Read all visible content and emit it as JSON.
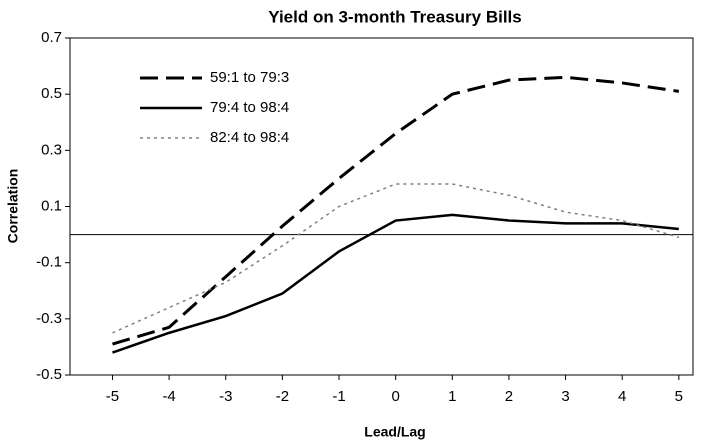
{
  "chart_data": {
    "type": "line",
    "title": "Yield on 3-month Treasury Bills",
    "x_label": "Lead/Lag",
    "y_label": "Correlation",
    "x": [
      -5,
      -4,
      -3,
      -2,
      -1,
      0,
      1,
      2,
      3,
      4,
      5
    ],
    "xlim": [
      -5.75,
      5.25
    ],
    "xticks": [
      -5,
      -4,
      -3,
      -2,
      -1,
      0,
      1,
      2,
      3,
      4,
      5
    ],
    "ylim": [
      -0.5,
      0.7
    ],
    "yticks": [
      -0.5,
      -0.3,
      -0.1,
      0.1,
      0.3,
      0.5,
      0.7
    ],
    "legend": "upper left",
    "series": [
      {
        "name": "59:1 to 79:3",
        "color": "#000000",
        "style": "dashed",
        "values": [
          -0.39,
          -0.33,
          -0.15,
          0.03,
          0.2,
          0.36,
          0.5,
          0.55,
          0.56,
          0.54,
          0.51
        ]
      },
      {
        "name": "79:4 to 98:4",
        "color": "#000000",
        "style": "solid",
        "values": [
          -0.42,
          -0.35,
          -0.29,
          -0.21,
          -0.06,
          0.05,
          0.07,
          0.05,
          0.04,
          0.04,
          0.02
        ]
      },
      {
        "name": "82:4 to 98:4",
        "color": "#808080",
        "style": "dotted",
        "values": [
          -0.35,
          -0.26,
          -0.17,
          -0.04,
          0.1,
          0.18,
          0.18,
          0.14,
          0.08,
          0.05,
          -0.01
        ]
      }
    ]
  }
}
